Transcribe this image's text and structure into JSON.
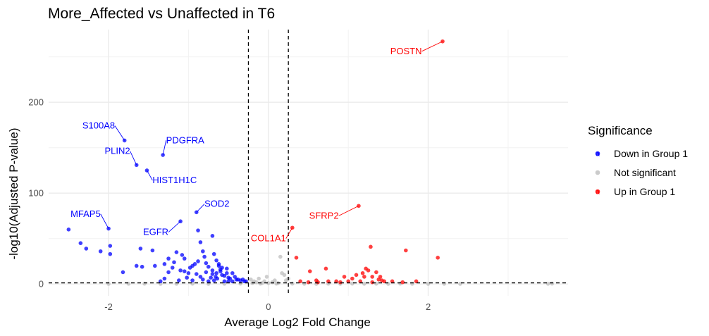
{
  "chart_data": {
    "type": "scatter",
    "title": "More_Affected vs Unaffected in T6",
    "xlabel": "Average Log2 Fold Change",
    "ylabel": "-log10(Adjusted P-value)",
    "xlim": [
      -2.75,
      3.75
    ],
    "ylim": [
      -13,
      280
    ],
    "x_ticks": [
      -2,
      0,
      2
    ],
    "x_tick_labels": [
      "-2",
      "0",
      "2"
    ],
    "y_ticks": [
      0,
      100,
      200
    ],
    "y_tick_labels": [
      "0",
      "100",
      "200"
    ],
    "thresholds": {
      "x": [
        -0.25,
        0.25
      ],
      "y": 1.3
    },
    "grid": true,
    "legend": {
      "title": "Significance",
      "position": "right",
      "entries": [
        {
          "label": "Down in Group 1",
          "color": "#0000ff"
        },
        {
          "label": "Not significant",
          "color": "#bebebe"
        },
        {
          "label": "Up in Group 1",
          "color": "#ff0000"
        }
      ]
    },
    "series": [
      {
        "name": "Down in Group 1",
        "color": "#0000ff",
        "points": [
          [
            -2.5,
            60
          ],
          [
            -2.35,
            45
          ],
          [
            -2.28,
            39
          ],
          [
            -2.1,
            36
          ],
          [
            -1.98,
            42
          ],
          [
            -1.98,
            33
          ],
          [
            -2.0,
            61
          ],
          [
            -1.8,
            158
          ],
          [
            -1.65,
            131
          ],
          [
            -1.52,
            125
          ],
          [
            -1.32,
            142
          ],
          [
            -1.1,
            69
          ],
          [
            -1.82,
            13
          ],
          [
            -1.65,
            20
          ],
          [
            -1.58,
            19
          ],
          [
            -1.6,
            39
          ],
          [
            -1.45,
            37
          ],
          [
            -1.42,
            20
          ],
          [
            -1.3,
            22
          ],
          [
            -1.25,
            28
          ],
          [
            -1.25,
            13
          ],
          [
            -1.18,
            24
          ],
          [
            -1.2,
            18
          ],
          [
            -1.15,
            35
          ],
          [
            -1.1,
            15
          ],
          [
            -1.05,
            14
          ],
          [
            -1.02,
            7
          ],
          [
            -1.0,
            12
          ],
          [
            -0.98,
            18
          ],
          [
            -0.92,
            22
          ],
          [
            -0.9,
            79
          ],
          [
            -0.88,
            59
          ],
          [
            -0.85,
            46
          ],
          [
            -0.82,
            36
          ],
          [
            -0.8,
            30
          ],
          [
            -0.78,
            23
          ],
          [
            -0.75,
            19
          ],
          [
            -0.7,
            53
          ],
          [
            -0.68,
            33
          ],
          [
            -0.65,
            26
          ],
          [
            -0.62,
            20
          ],
          [
            -0.6,
            14
          ],
          [
            -0.58,
            10
          ],
          [
            -0.55,
            9
          ],
          [
            -0.52,
            17
          ],
          [
            -0.5,
            7
          ],
          [
            -0.48,
            6
          ],
          [
            -0.45,
            12
          ],
          [
            -0.42,
            8
          ],
          [
            -0.4,
            5
          ],
          [
            -0.38,
            5
          ],
          [
            -0.35,
            4
          ],
          [
            -0.32,
            5
          ],
          [
            -0.3,
            3
          ],
          [
            -0.28,
            3
          ],
          [
            -0.9,
            11
          ],
          [
            -0.85,
            8
          ],
          [
            -0.82,
            5
          ],
          [
            -0.78,
            13
          ],
          [
            -0.72,
            7
          ],
          [
            -0.7,
            11
          ],
          [
            -0.66,
            8
          ],
          [
            -0.64,
            6
          ],
          [
            -0.6,
            16
          ],
          [
            -1.3,
            6
          ],
          [
            -1.35,
            3
          ],
          [
            -1.12,
            4
          ],
          [
            -0.95,
            4
          ],
          [
            -0.75,
            3
          ],
          [
            -0.55,
            3
          ],
          [
            -0.45,
            3
          ],
          [
            -1.08,
            32
          ],
          [
            -0.7,
            15
          ],
          [
            -0.62,
            22
          ],
          [
            -0.58,
            18
          ],
          [
            -0.52,
            12
          ],
          [
            -0.95,
            20
          ],
          [
            -0.65,
            12
          ],
          [
            -1.05,
            28
          ],
          [
            -0.88,
            25
          ],
          [
            -0.5,
            3
          ],
          [
            -0.68,
            4
          ]
        ]
      },
      {
        "name": "Not significant",
        "color": "#bebebe",
        "points": [
          [
            -0.2,
            1
          ],
          [
            -0.15,
            2
          ],
          [
            -0.1,
            0.5
          ],
          [
            -0.05,
            3
          ],
          [
            0.0,
            1
          ],
          [
            0.05,
            2
          ],
          [
            0.1,
            0.5
          ],
          [
            0.15,
            30
          ],
          [
            0.17,
            12
          ],
          [
            0.2,
            10
          ],
          [
            0.22,
            4
          ],
          [
            -0.22,
            5
          ],
          [
            -0.18,
            3
          ],
          [
            -0.08,
            1
          ],
          [
            0.12,
            1
          ],
          [
            0.3,
            0.5
          ],
          [
            0.45,
            0.3
          ],
          [
            0.6,
            0.2
          ],
          [
            0.75,
            0.4
          ],
          [
            0.9,
            0.3
          ],
          [
            1.05,
            0.5
          ],
          [
            1.2,
            0.3
          ],
          [
            1.35,
            0.4
          ],
          [
            1.5,
            0.2
          ],
          [
            1.65,
            0.5
          ],
          [
            1.8,
            0.3
          ],
          [
            2.0,
            0.2
          ],
          [
            2.2,
            0.3
          ],
          [
            2.4,
            0.2
          ],
          [
            3.5,
            0.3
          ],
          [
            3.55,
            0.5
          ],
          [
            -0.35,
            0.5
          ],
          [
            -0.55,
            0.3
          ],
          [
            -0.75,
            0.2
          ],
          [
            -0.95,
            0.4
          ],
          [
            -1.15,
            0.3
          ],
          [
            -1.35,
            0.2
          ],
          [
            -1.55,
            0.4
          ],
          [
            -1.75,
            0.3
          ],
          [
            -2.0,
            0.2
          ],
          [
            0.25,
            6
          ],
          [
            -0.02,
            8
          ],
          [
            0.08,
            4
          ],
          [
            -0.12,
            6
          ]
        ]
      },
      {
        "name": "Up in Group 1",
        "color": "#ff0000",
        "points": [
          [
            2.18,
            267
          ],
          [
            1.13,
            86
          ],
          [
            0.3,
            62
          ],
          [
            0.35,
            29
          ],
          [
            1.28,
            41
          ],
          [
            1.72,
            37
          ],
          [
            2.12,
            29
          ],
          [
            0.72,
            17
          ],
          [
            0.52,
            14
          ],
          [
            1.25,
            15
          ],
          [
            1.18,
            12
          ],
          [
            1.1,
            10
          ],
          [
            1.2,
            8
          ],
          [
            1.22,
            17
          ],
          [
            1.3,
            8
          ],
          [
            1.35,
            13
          ],
          [
            1.38,
            5
          ],
          [
            1.05,
            6
          ],
          [
            0.95,
            8
          ],
          [
            0.6,
            4
          ],
          [
            0.75,
            3
          ],
          [
            0.85,
            3
          ],
          [
            1.0,
            3
          ],
          [
            1.15,
            3
          ],
          [
            1.45,
            3
          ],
          [
            1.55,
            3
          ],
          [
            1.68,
            2
          ],
          [
            1.85,
            3
          ],
          [
            0.4,
            3
          ],
          [
            0.5,
            2
          ],
          [
            0.62,
            2
          ],
          [
            1.3,
            2
          ],
          [
            1.42,
            4
          ],
          [
            1.4,
            8
          ],
          [
            0.9,
            2
          ]
        ]
      }
    ],
    "annotations": [
      {
        "gene": "POSTN",
        "x": 2.18,
        "y": 267,
        "color": "#ff0000",
        "label_x": 1.92,
        "label_y": 253,
        "anchor": "end"
      },
      {
        "gene": "SFRP2",
        "x": 1.13,
        "y": 86,
        "color": "#ff0000",
        "label_x": 0.88,
        "label_y": 72,
        "anchor": "end"
      },
      {
        "gene": "COL1A1",
        "x": 0.3,
        "y": 62,
        "color": "#ff0000",
        "label_x": 0.22,
        "label_y": 47,
        "anchor": "end"
      },
      {
        "gene": "S100A8",
        "x": -1.8,
        "y": 158,
        "color": "#0000ff",
        "label_x": -1.92,
        "label_y": 171,
        "anchor": "end"
      },
      {
        "gene": "PLIN2",
        "x": -1.65,
        "y": 131,
        "color": "#0000ff",
        "label_x": -1.73,
        "label_y": 143,
        "anchor": "end"
      },
      {
        "gene": "PDGFRA",
        "x": -1.32,
        "y": 142,
        "color": "#0000ff",
        "label_x": -1.28,
        "label_y": 155,
        "anchor": "start"
      },
      {
        "gene": "HIST1H1C",
        "x": -1.52,
        "y": 125,
        "color": "#0000ff",
        "label_x": -1.45,
        "label_y": 111,
        "anchor": "start"
      },
      {
        "gene": "SOD2",
        "x": -0.9,
        "y": 79,
        "color": "#0000ff",
        "label_x": -0.8,
        "label_y": 85,
        "anchor": "start"
      },
      {
        "gene": "MFAP5",
        "x": -2.0,
        "y": 61,
        "color": "#0000ff",
        "label_x": -2.1,
        "label_y": 74,
        "anchor": "end"
      },
      {
        "gene": "EGFR",
        "x": -1.1,
        "y": 69,
        "color": "#0000ff",
        "label_x": -1.25,
        "label_y": 54,
        "anchor": "end"
      }
    ]
  }
}
